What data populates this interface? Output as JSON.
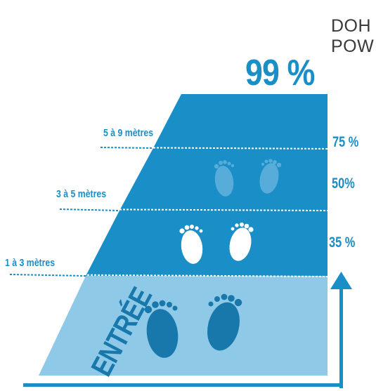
{
  "header": {
    "line1": "DOH",
    "line2": "POW"
  },
  "headline_percentage": "99 %",
  "zone_percentages": {
    "top": "75 %",
    "middle": "50%",
    "bottom": "35 %"
  },
  "distance_labels": {
    "far": "5 à 9 mètres",
    "mid": "3 à 5 mètres",
    "near": "1 à 3 mètres"
  },
  "entry_label": "ENTRÉE",
  "colors": {
    "zone_dark": "#1a8ec6",
    "zone_light": "#8fc9e8",
    "accent": "#1a8ec6",
    "footprint_dark": "#1878ab",
    "footprint_white": "#ffffff",
    "header_text": "#3a3a3a"
  },
  "icons": {
    "footprints": "footprints-icon",
    "arrow": "arrow-up-icon"
  }
}
